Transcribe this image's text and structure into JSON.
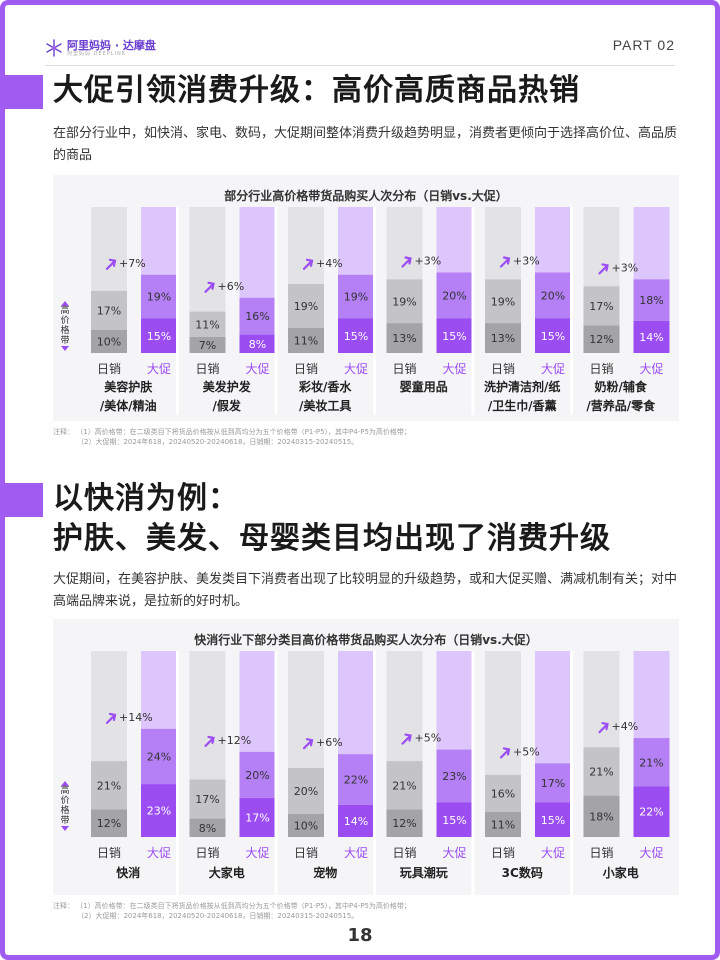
{
  "header": {
    "logo_text": "阿里妈妈 · 达摩盘",
    "logo_sub": "阿里妈妈 DEEPLINK",
    "part": "PART 02"
  },
  "section1": {
    "title": "大促引领消费升级：高价高质商品热销",
    "description": "在部分行业中，如快消、家电、数码，大促期间整体消费升级趋势明显，消费者更倾向于选择高价位、高品质的商品"
  },
  "section2": {
    "title_line1": "以快消为例：",
    "title_line2": "护肤、美发、母婴类目均出现了消费升级",
    "description": "大促期间，在美容护肤、美发类目下消费者出现了比较明显的升级趋势，或和大促买赠、满减机制有关；对中高端品牌来说，是拉新的好时机。"
  },
  "notes1": {
    "line1": "注释：   （1）高价格带：在二级类目下将货品价格按从低到高均分为五个价格带（P1-P5），其中P4-P5为高价格带；",
    "line2": "（2）大促期：2024年618，20240520-20240618，日销期：20240315-20240515。"
  },
  "notes2": {
    "line1": "注释：   （1）高价格带：在二级类目下将货品价格按从低到高均分为五个价格带（P1-P5），其中P4-P5为高价格带；",
    "line2": "（2）大促期：2024年618，20240520-20240618，日销期：20240315-20240515。"
  },
  "page_number": "18",
  "colors": {
    "accent": "#a05cf0",
    "daily_light": "#e3e3e6",
    "daily_mid": "#c4c4c8",
    "daily_dark": "#a3a3a8",
    "promo_light": "#ddc6fb",
    "promo_mid": "#b580f6",
    "promo_dark": "#9b4df2"
  },
  "chart_data": [
    {
      "type": "bar",
      "title": "部分行业高价格带货品购买人次分布（日销vs.大促）",
      "ylabel": "高价格带",
      "bar_labels": [
        "日销",
        "大促"
      ],
      "ylim": [
        0,
        100
      ],
      "categories": [
        {
          "lines": [
            "美容护肤",
            "/美体/精油"
          ],
          "daily": [
            10,
            17
          ],
          "promo": [
            15,
            19
          ],
          "uplift": "+7%"
        },
        {
          "lines": [
            "美发护发",
            "/假发"
          ],
          "daily": [
            7,
            11
          ],
          "promo": [
            8,
            16
          ],
          "uplift": "+6%"
        },
        {
          "lines": [
            "彩妆/香水",
            "/美妆工具"
          ],
          "daily": [
            11,
            19
          ],
          "promo": [
            15,
            19
          ],
          "uplift": "+4%"
        },
        {
          "lines": [
            "婴童用品"
          ],
          "daily": [
            13,
            19
          ],
          "promo": [
            15,
            20
          ],
          "uplift": "+3%"
        },
        {
          "lines": [
            "洗护清洁剂/纸",
            "/卫生巾/香薰"
          ],
          "daily": [
            13,
            19
          ],
          "promo": [
            15,
            20
          ],
          "uplift": "+3%"
        },
        {
          "lines": [
            "奶粉/辅食",
            "/营养品/零食"
          ],
          "daily": [
            12,
            17
          ],
          "promo": [
            14,
            18
          ],
          "uplift": "+3%"
        }
      ]
    },
    {
      "type": "bar",
      "title": "快消行业下部分类目高价格带货品购买人次分布（日销vs.大促）",
      "ylabel": "高价格带",
      "bar_labels": [
        "日销",
        "大促"
      ],
      "ylim": [
        0,
        100
      ],
      "categories": [
        {
          "lines": [
            "快消"
          ],
          "daily": [
            12,
            21
          ],
          "promo": [
            23,
            24
          ],
          "uplift": "+14%"
        },
        {
          "lines": [
            "大家电"
          ],
          "daily": [
            8,
            17
          ],
          "promo": [
            17,
            20
          ],
          "uplift": "+12%"
        },
        {
          "lines": [
            "宠物"
          ],
          "daily": [
            10,
            20
          ],
          "promo": [
            14,
            22
          ],
          "uplift": "+6%"
        },
        {
          "lines": [
            "玩具潮玩"
          ],
          "daily": [
            12,
            21
          ],
          "promo": [
            15,
            23
          ],
          "uplift": "+5%"
        },
        {
          "lines": [
            "3C数码"
          ],
          "daily": [
            11,
            16
          ],
          "promo": [
            15,
            17
          ],
          "uplift": "+5%"
        },
        {
          "lines": [
            "小家电"
          ],
          "daily": [
            18,
            21
          ],
          "promo": [
            22,
            21
          ],
          "uplift": "+4%"
        }
      ]
    }
  ]
}
